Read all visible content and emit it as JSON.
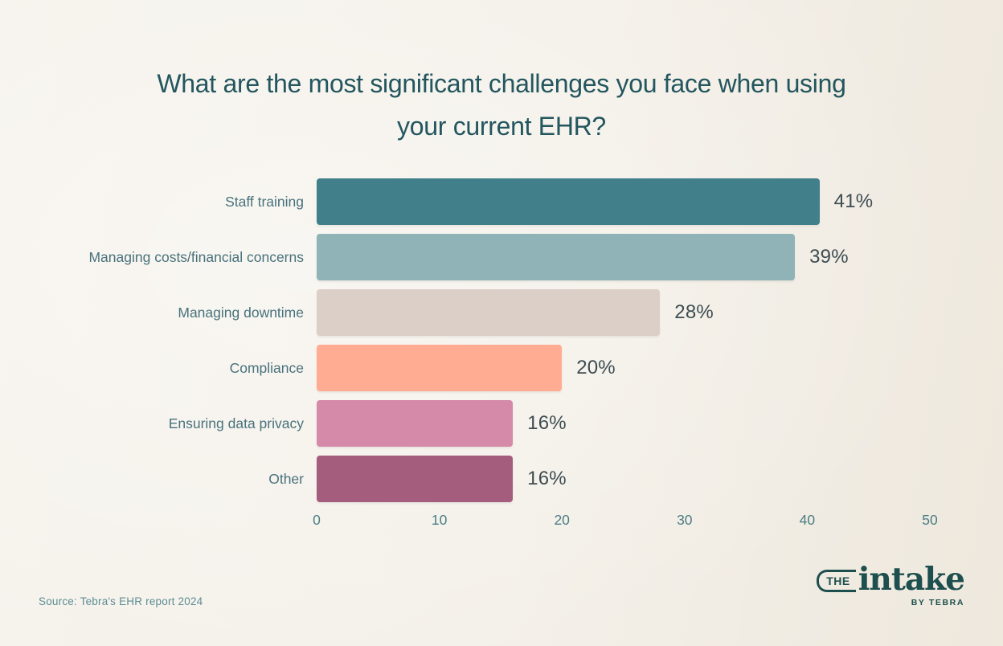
{
  "page": {
    "background": "#f4f0e9",
    "source": "Source: Tebra's EHR report 2024"
  },
  "chart_data": {
    "type": "bar",
    "orientation": "horizontal",
    "title": "What are the most significant challenges you face when using your current EHR?",
    "categories": [
      "Staff training",
      "Managing costs/financial concerns",
      "Managing downtime",
      "Compliance",
      "Ensuring data privacy",
      "Other"
    ],
    "values": [
      41,
      39,
      28,
      20,
      16,
      16
    ],
    "value_labels": [
      "41%",
      "39%",
      "28%",
      "20%",
      "16%",
      "16%"
    ],
    "bar_colors": [
      "#41808a",
      "#8fb3b6",
      "#dccfc7",
      "#ffac92",
      "#d58aa9",
      "#a45d7d"
    ],
    "xlim": [
      0,
      50
    ],
    "x_ticks": [
      "0",
      "10",
      "20",
      "30",
      "40",
      "50"
    ],
    "grid": false,
    "legend": false,
    "title_color": "#23565e",
    "category_label_color": "#49727c",
    "value_label_color": "#3e4d52",
    "tick_label_color": "#4a7d83"
  },
  "branding": {
    "logo_the": "THE",
    "logo_name": "intake",
    "logo_byline": "BY TEBRA",
    "logo_color": "#1d4f4e"
  }
}
